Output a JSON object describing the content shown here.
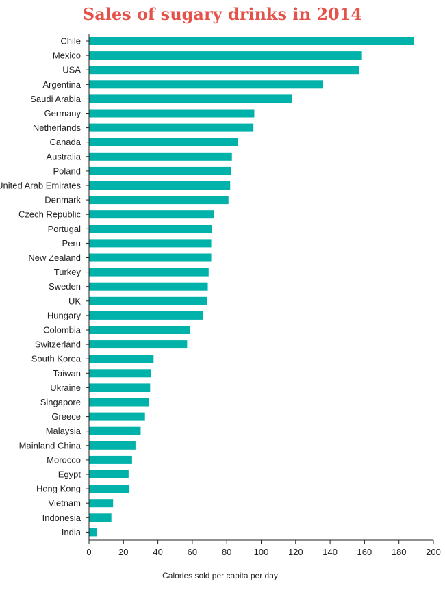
{
  "chart_data": {
    "type": "bar",
    "orientation": "horizontal",
    "title": "Sales of sugary drinks in 2014",
    "xlabel": "Calories sold per capita per day",
    "ylabel": "",
    "xlim": [
      0,
      200
    ],
    "xticks": [
      0,
      20,
      40,
      60,
      80,
      100,
      120,
      140,
      160,
      180,
      200
    ],
    "grid": false,
    "bar_color": "#00b2a9",
    "title_color": "#e5524a",
    "categories": [
      "Chile",
      "Mexico",
      "USA",
      "Argentina",
      "Saudi Arabia",
      "Germany",
      "Netherlands",
      "Canada",
      "Australia",
      "Poland",
      "United Arab Emirates",
      "Denmark",
      "Czech Republic",
      "Portugal",
      "Peru",
      "New Zealand",
      "Turkey",
      "Sweden",
      "UK",
      "Hungary",
      "Colombia",
      "Switzerland",
      "South Korea",
      "Taiwan",
      "Ukraine",
      "Singapore",
      "Greece",
      "Malaysia",
      "Mainland China",
      "Morocco",
      "Egypt",
      "Hong Kong",
      "Vietnam",
      "Indonesia",
      "India"
    ],
    "values": [
      188.5,
      158.5,
      157,
      136,
      118,
      96,
      95.5,
      86.5,
      83,
      82.5,
      82,
      81,
      72.5,
      71.5,
      71,
      71,
      69.5,
      69,
      68.5,
      66,
      58.5,
      57,
      37.5,
      36,
      35.5,
      35,
      32.5,
      30,
      27,
      25,
      23,
      23.5,
      14,
      13,
      4.5
    ]
  }
}
